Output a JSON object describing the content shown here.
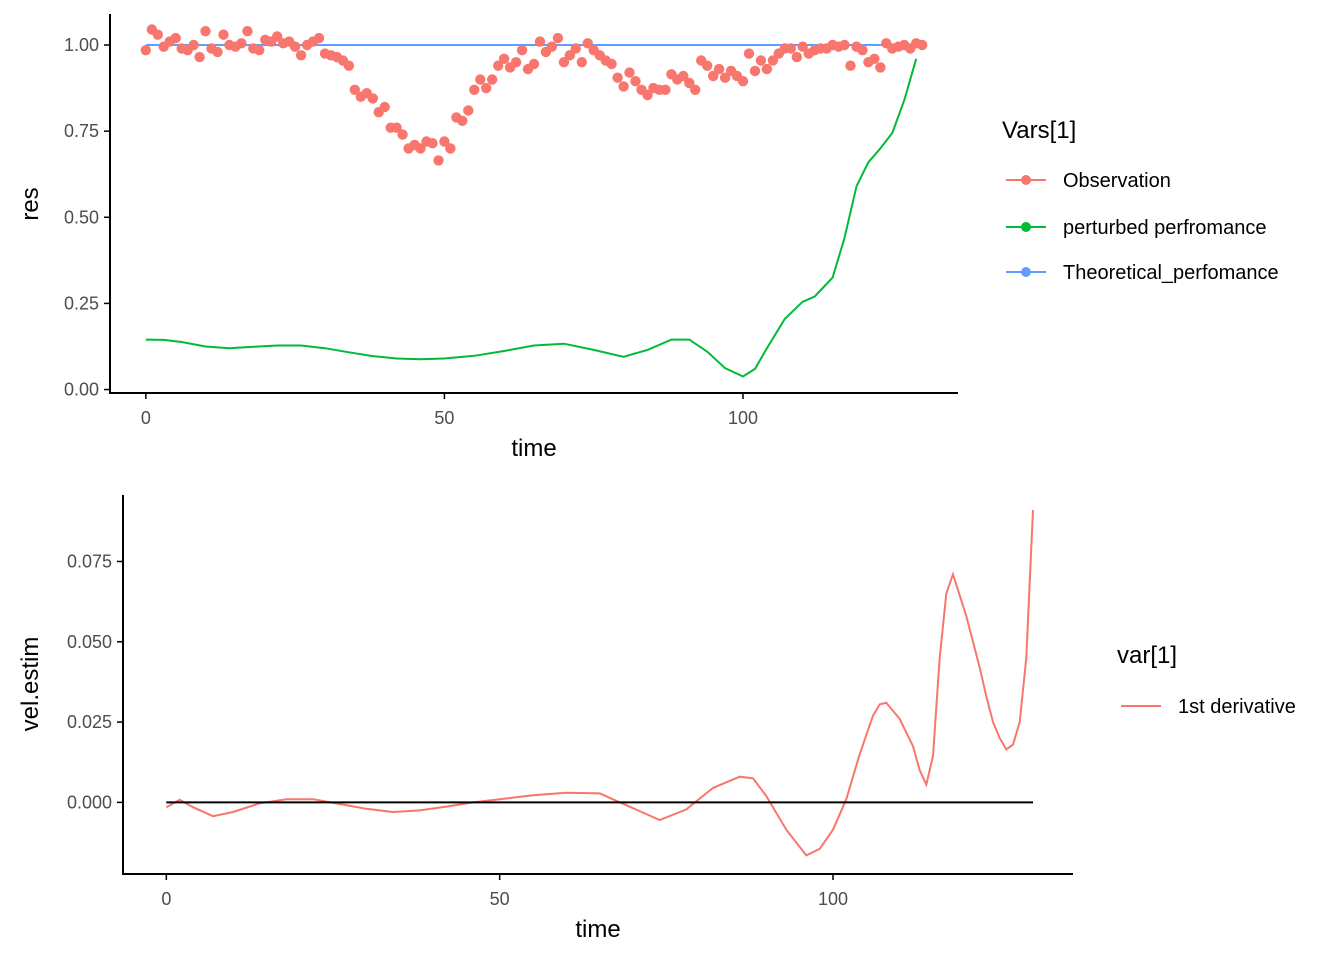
{
  "colors": {
    "observation": "#F8766D",
    "perturbed": "#00BA38",
    "theoretical": "#619CFF",
    "derivative": "#F8766D",
    "zero_line": "#000000",
    "tick_text": "#4d4d4d"
  },
  "chart_data": [
    {
      "type": "line",
      "xlabel": "time",
      "ylabel": "res",
      "xlim": [
        -6,
        136
      ],
      "ylim": [
        -0.01,
        1.09
      ],
      "x_ticks": [
        0,
        50,
        100
      ],
      "x_tick_labels": [
        "0",
        "50",
        "100"
      ],
      "y_ticks": [
        0,
        0.25,
        0.5,
        0.75,
        1.0
      ],
      "y_tick_labels": [
        "0.00",
        "0.25",
        "0.50",
        "0.75",
        "1.00"
      ],
      "grid": false,
      "legend": {
        "title": "Vars[1]",
        "position": "right",
        "entries": [
          "Observation",
          "perturbed perfromance",
          "Theoretical_perfomance"
        ]
      },
      "series": [
        {
          "name": "Observation",
          "kind": "scatter",
          "x": [
            0,
            1,
            2,
            3,
            4,
            5,
            6,
            7,
            8,
            9,
            10,
            11,
            12,
            13,
            14,
            15,
            16,
            17,
            18,
            19,
            20,
            21,
            22,
            23,
            24,
            25,
            26,
            27,
            28,
            29,
            30,
            31,
            32,
            33,
            34,
            35,
            36,
            37,
            38,
            39,
            40,
            41,
            42,
            43,
            44,
            45,
            46,
            47,
            48,
            49,
            50,
            51,
            52,
            53,
            54,
            55,
            56,
            57,
            58,
            59,
            60,
            61,
            62,
            63,
            64,
            65,
            66,
            67,
            68,
            69,
            70,
            71,
            72,
            73,
            74,
            75,
            76,
            77,
            78,
            79,
            80,
            81,
            82,
            83,
            84,
            85,
            86,
            87,
            88,
            89,
            90,
            91,
            92,
            93,
            94,
            95,
            96,
            97,
            98,
            99,
            100,
            101,
            102,
            103,
            104,
            105,
            106,
            107,
            108,
            109,
            110,
            111,
            112,
            113,
            114,
            115,
            116,
            117,
            118,
            119,
            120,
            121,
            122,
            123,
            124,
            125,
            126,
            127,
            128,
            129,
            130
          ],
          "y": [
            0.985,
            1.045,
            1.03,
            0.995,
            1.01,
            1.02,
            0.99,
            0.985,
            1.0,
            0.965,
            1.04,
            0.99,
            0.98,
            1.03,
            1.0,
            0.995,
            1.005,
            1.04,
            0.99,
            0.985,
            1.015,
            1.01,
            1.025,
            1.005,
            1.01,
            0.995,
            0.97,
            1.0,
            1.01,
            1.02,
            0.975,
            0.97,
            0.965,
            0.955,
            0.94,
            0.87,
            0.85,
            0.86,
            0.845,
            0.805,
            0.82,
            0.76,
            0.76,
            0.74,
            0.7,
            0.71,
            0.7,
            0.72,
            0.715,
            0.665,
            0.72,
            0.7,
            0.79,
            0.78,
            0.81,
            0.87,
            0.9,
            0.875,
            0.9,
            0.94,
            0.96,
            0.935,
            0.95,
            0.985,
            0.93,
            0.945,
            1.01,
            0.98,
            0.995,
            1.02,
            0.95,
            0.97,
            0.99,
            0.95,
            1.005,
            0.985,
            0.97,
            0.955,
            0.945,
            0.905,
            0.88,
            0.92,
            0.895,
            0.87,
            0.855,
            0.875,
            0.87,
            0.87,
            0.915,
            0.9,
            0.91,
            0.89,
            0.87,
            0.955,
            0.94,
            0.91,
            0.93,
            0.905,
            0.925,
            0.91,
            0.895,
            0.975,
            0.925,
            0.955,
            0.93,
            0.955,
            0.975,
            0.99,
            0.99,
            0.965,
            0.995,
            0.975,
            0.985,
            0.99,
            0.99,
            1.0,
            0.995,
            1.0,
            0.94,
            0.995,
            0.985,
            0.95,
            0.96,
            0.935,
            1.005,
            0.99,
            0.995,
            1.0,
            0.99,
            1.005,
            1.0
          ]
        },
        {
          "name": "perturbed perfromance",
          "kind": "line",
          "x": [
            0,
            3,
            6,
            10,
            14,
            18,
            22,
            26,
            30,
            34,
            38,
            42,
            46,
            50,
            55,
            60,
            65,
            70,
            75,
            80,
            84,
            88,
            91,
            94,
            97,
            100,
            102,
            104,
            107,
            110,
            112,
            115,
            117,
            119,
            121,
            123,
            125,
            127,
            129
          ],
          "y": [
            0.145,
            0.144,
            0.138,
            0.125,
            0.12,
            0.124,
            0.128,
            0.128,
            0.12,
            0.108,
            0.097,
            0.09,
            0.088,
            0.09,
            0.098,
            0.112,
            0.128,
            0.133,
            0.115,
            0.095,
            0.115,
            0.145,
            0.145,
            0.11,
            0.062,
            0.038,
            0.06,
            0.12,
            0.205,
            0.255,
            0.27,
            0.325,
            0.44,
            0.59,
            0.66,
            0.7,
            0.745,
            0.84,
            0.96
          ]
        },
        {
          "name": "Theoretical_perfomance",
          "kind": "line",
          "x": [
            0,
            130
          ],
          "y": [
            1.0,
            1.0
          ]
        }
      ]
    },
    {
      "type": "line",
      "xlabel": "time",
      "ylabel": "vel.estim",
      "xlim": [
        -6.5,
        136
      ],
      "ylim": [
        -0.0223,
        0.0957
      ],
      "x_ticks": [
        0,
        50,
        100
      ],
      "x_tick_labels": [
        "0",
        "50",
        "100"
      ],
      "y_ticks": [
        0.0,
        0.025,
        0.05,
        0.075
      ],
      "y_tick_labels": [
        "0.000",
        "0.025",
        "0.050",
        "0.075"
      ],
      "grid": false,
      "legend": {
        "title": "var[1]",
        "position": "right",
        "entries": [
          "1st derivative"
        ]
      },
      "series": [
        {
          "name": "1st derivative",
          "kind": "line",
          "x": [
            0,
            2,
            4,
            7,
            10,
            14,
            18,
            22,
            26,
            30,
            34,
            38,
            42,
            46,
            50,
            55,
            60,
            65,
            70,
            74,
            78,
            82,
            86,
            88,
            90,
            93,
            96,
            98,
            100,
            102,
            104,
            106,
            107,
            108,
            110,
            112,
            113,
            114,
            115,
            116,
            117,
            118,
            120,
            122,
            123,
            124,
            125,
            126,
            127,
            128,
            129,
            130
          ],
          "y": [
            -0.0015,
            0.0008,
            -0.0015,
            -0.0043,
            -0.003,
            -0.0003,
            0.001,
            0.001,
            -0.0005,
            -0.002,
            -0.003,
            -0.0025,
            -0.0013,
            0.0,
            0.001,
            0.0022,
            0.003,
            0.0028,
            -0.0018,
            -0.0055,
            -0.0022,
            0.0045,
            0.008,
            0.0075,
            0.002,
            -0.0085,
            -0.0165,
            -0.0145,
            -0.0085,
            0.001,
            0.015,
            0.027,
            0.0305,
            0.031,
            0.026,
            0.0175,
            0.01,
            0.0055,
            0.0145,
            0.045,
            0.065,
            0.071,
            0.058,
            0.042,
            0.033,
            0.025,
            0.02,
            0.0165,
            0.018,
            0.025,
            0.045,
            0.091
          ]
        },
        {
          "name": "zero",
          "kind": "reference",
          "x": [
            0,
            130
          ],
          "y": [
            0,
            0
          ]
        }
      ]
    }
  ]
}
